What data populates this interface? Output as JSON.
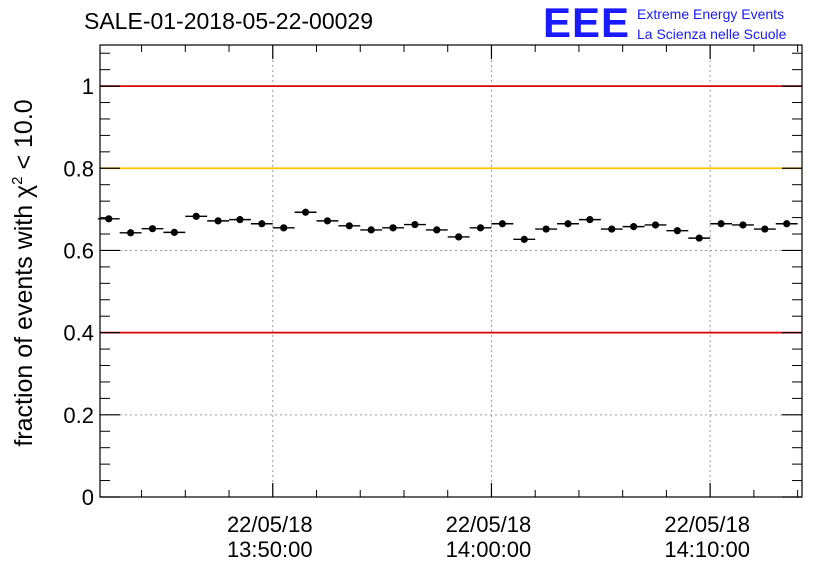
{
  "chart_data": {
    "type": "scatter",
    "title": "SALE-01-2018-05-22-00029",
    "ylabel_main": "fraction of events with ",
    "ylabel_symbol": "χ",
    "ylabel_sup": "2",
    "ylabel_tail": " < 10.0",
    "xlabel": "",
    "ylim": [
      0,
      1.1
    ],
    "yticks": [
      {
        "value": 0,
        "label": "0"
      },
      {
        "value": 0.2,
        "label": "0.2"
      },
      {
        "value": 0.4,
        "label": "0.4"
      },
      {
        "value": 0.6,
        "label": "0.6"
      },
      {
        "value": 0.8,
        "label": "0.8"
      },
      {
        "value": 1,
        "label": "1"
      }
    ],
    "xlim_minutes": [
      -7.9,
      24.2
    ],
    "xticks": [
      {
        "minute": 0,
        "date": "22/05/18",
        "time": "13:50:00"
      },
      {
        "minute": 10,
        "date": "22/05/18",
        "time": "14:00:00"
      },
      {
        "minute": 20,
        "date": "22/05/18",
        "time": "14:10:00"
      }
    ],
    "grid": true,
    "hlines": [
      {
        "value": 1.0,
        "color": "#dd0000"
      },
      {
        "value": 0.8,
        "color": "#ffc200"
      },
      {
        "value": 0.4,
        "color": "#dd0000"
      }
    ],
    "x": [
      -7.5,
      -6.5,
      -5.5,
      -4.5,
      -3.5,
      -2.5,
      -1.5,
      -0.5,
      0.5,
      1.5,
      2.5,
      3.5,
      4.5,
      5.5,
      6.5,
      7.5,
      8.5,
      9.5,
      10.5,
      11.5,
      12.5,
      13.5,
      14.5,
      15.5,
      16.5,
      17.5,
      18.5,
      19.5,
      20.5,
      21.5,
      22.5,
      23.5
    ],
    "values": [
      0.677,
      0.643,
      0.653,
      0.644,
      0.683,
      0.672,
      0.675,
      0.665,
      0.655,
      0.693,
      0.672,
      0.66,
      0.65,
      0.655,
      0.663,
      0.65,
      0.633,
      0.655,
      0.665,
      0.627,
      0.652,
      0.665,
      0.675,
      0.652,
      0.658,
      0.662,
      0.648,
      0.63,
      0.665,
      0.662,
      0.652,
      0.665
    ],
    "xerr_minutes": 0.5,
    "yerr": 0.008
  },
  "logo": {
    "mark": "EEE",
    "line1": "Extreme Energy Events",
    "line2": "La Scienza nelle Scuole",
    "color": "#1a1aff"
  }
}
